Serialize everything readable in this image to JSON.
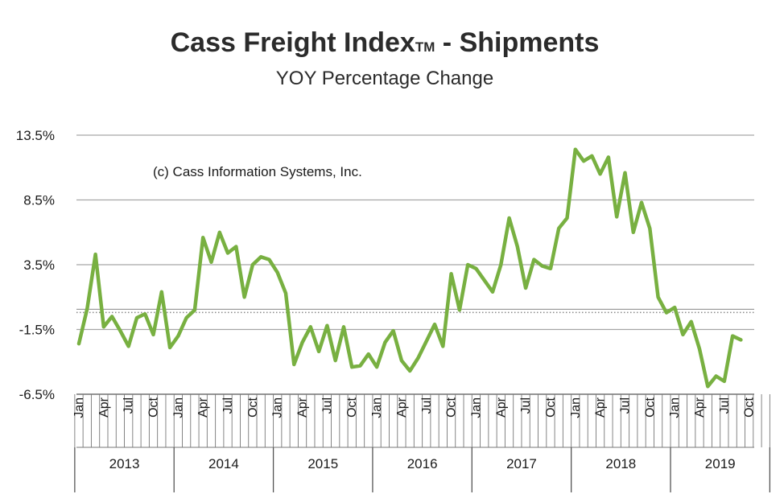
{
  "chart_data": {
    "type": "line",
    "title": "Cass Freight Index",
    "title_mark": "TM",
    "title_suffix": " - Shipments",
    "subtitle": "YOY Percentage Change",
    "annotation": "(c) Cass Information Systems, Inc.",
    "ylim": [
      -6.5,
      13.5
    ],
    "y_ticks": [
      "13.5%",
      "8.5%",
      "3.5%",
      "-1.5%",
      "-6.5%"
    ],
    "y_tick_values": [
      13.5,
      8.5,
      3.5,
      -1.5,
      -6.5
    ],
    "month_labels": [
      "Jan",
      "Apr",
      "Jul",
      "Oct"
    ],
    "years": [
      "2013",
      "2014",
      "2015",
      "2016",
      "2017",
      "2018",
      "2019"
    ],
    "series_color": "#78b041",
    "grid": true,
    "series": [
      {
        "name": "Shipments YOY % change",
        "values": [
          -2.6,
          0.1,
          4.3,
          -1.3,
          -0.5,
          -1.6,
          -2.8,
          -0.6,
          -0.3,
          -1.9,
          1.4,
          -2.9,
          -2.0,
          -0.6,
          0.0,
          5.6,
          3.7,
          6.0,
          4.4,
          4.9,
          1.0,
          3.5,
          4.1,
          3.9,
          2.9,
          1.3,
          -4.2,
          -2.5,
          -1.3,
          -3.2,
          -1.2,
          -3.9,
          -1.3,
          -4.4,
          -4.3,
          -3.4,
          -4.4,
          -2.5,
          -1.6,
          -3.9,
          -4.7,
          -3.7,
          -2.4,
          -1.1,
          -2.8,
          2.8,
          0.0,
          3.5,
          3.2,
          2.3,
          1.4,
          3.5,
          7.1,
          4.9,
          1.7,
          3.9,
          3.4,
          3.2,
          6.3,
          7.1,
          12.4,
          11.5,
          11.9,
          10.5,
          11.8,
          7.2,
          10.6,
          6.0,
          8.3,
          6.3,
          1.0,
          -0.2,
          0.2,
          -1.9,
          -0.9,
          -3.0,
          -5.9,
          -5.1,
          -5.5,
          -2.0,
          -2.3
        ]
      }
    ]
  }
}
